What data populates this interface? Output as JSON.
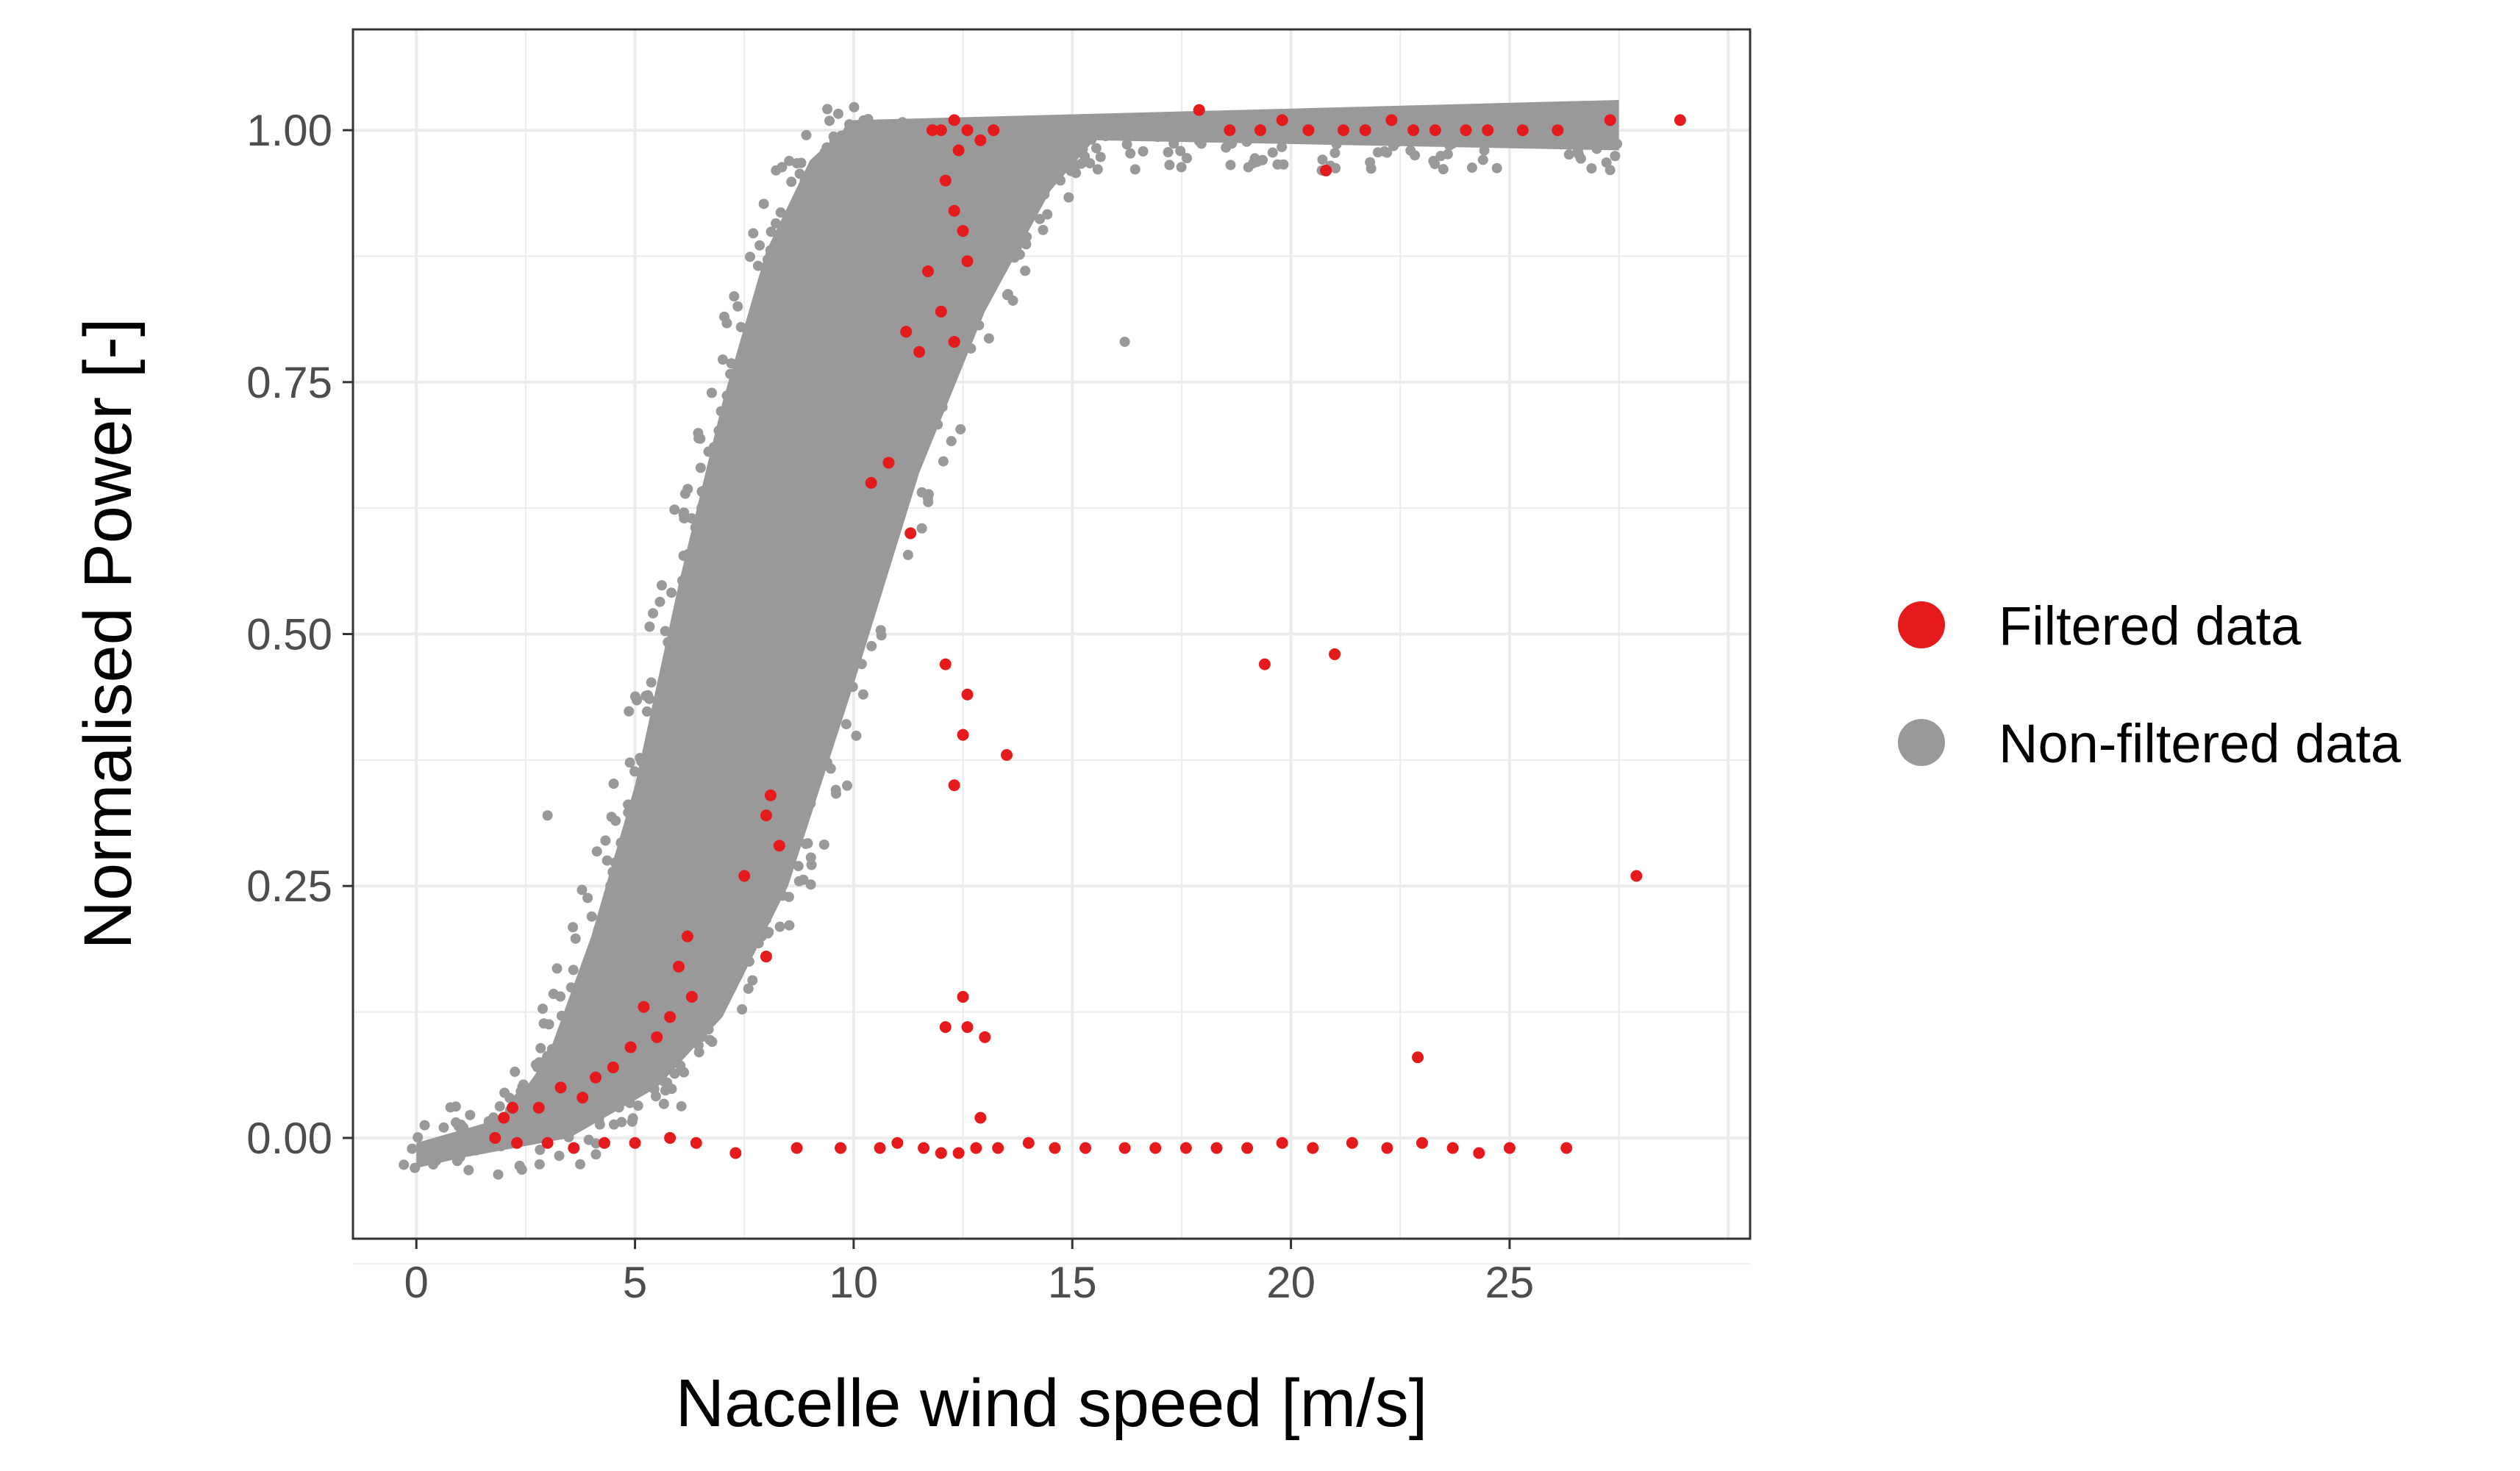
{
  "chart_data": {
    "type": "scatter",
    "xlabel": "Nacelle wind speed [m/s]",
    "ylabel": "Normalised Power [-]",
    "xlim": [
      -1.45,
      30.5
    ],
    "ylim": [
      -0.1,
      1.1
    ],
    "x_ticks": [
      0,
      5,
      10,
      15,
      20,
      25
    ],
    "x_tick_labels": [
      "0",
      "5",
      "10",
      "15",
      "20",
      "25"
    ],
    "y_ticks": [
      0,
      0.25,
      0.5,
      0.75,
      1.0
    ],
    "y_tick_labels": [
      "0.00",
      "0.25",
      "0.50",
      "0.75",
      "1.00"
    ],
    "grid": true,
    "legend_position": "right",
    "series": [
      {
        "name": "Non-filtered data",
        "color": "#999999",
        "description_of_extent": {
          "rated_band_x": [
            10.5,
            27.5
          ],
          "rated_band_y": [
            0.98,
            1.03
          ],
          "ramp_lower_edge": [
            [
              1.0,
              -0.02
            ],
            [
              3.5,
              0.0
            ],
            [
              5.5,
              0.05
            ],
            [
              7.0,
              0.12
            ],
            [
              8.5,
              0.25
            ],
            [
              10.0,
              0.45
            ],
            [
              11.5,
              0.66
            ],
            [
              13.0,
              0.82
            ],
            [
              14.5,
              0.94
            ],
            [
              15.5,
              0.99
            ]
          ],
          "ramp_upper_edge": [
            [
              0.0,
              -0.005
            ],
            [
              2.0,
              0.02
            ],
            [
              3.0,
              0.08
            ],
            [
              4.0,
              0.2
            ],
            [
              5.0,
              0.35
            ],
            [
              6.0,
              0.55
            ],
            [
              7.0,
              0.73
            ],
            [
              8.0,
              0.88
            ],
            [
              9.0,
              0.97
            ],
            [
              10.0,
              1.01
            ]
          ]
        },
        "outliers": [
          [
            16.2,
            0.79
          ],
          [
            3.0,
            0.32
          ],
          [
            26.1,
            1.02
          ]
        ]
      },
      {
        "name": "Filtered data",
        "color": "#e41a1c",
        "points": [
          [
            12.0,
            1.0
          ],
          [
            12.3,
            1.01
          ],
          [
            12.6,
            1.0
          ],
          [
            12.9,
            0.99
          ],
          [
            13.2,
            1.0
          ],
          [
            11.8,
            1.0
          ],
          [
            12.4,
            0.98
          ],
          [
            12.1,
            0.95
          ],
          [
            12.3,
            0.92
          ],
          [
            12.5,
            0.9
          ],
          [
            12.6,
            0.87
          ],
          [
            11.7,
            0.86
          ],
          [
            12.0,
            0.82
          ],
          [
            12.3,
            0.79
          ],
          [
            11.2,
            0.8
          ],
          [
            11.5,
            0.78
          ],
          [
            10.4,
            0.65
          ],
          [
            10.8,
            0.67
          ],
          [
            11.3,
            0.6
          ],
          [
            12.1,
            0.47
          ],
          [
            12.6,
            0.44
          ],
          [
            12.5,
            0.4
          ],
          [
            13.5,
            0.38
          ],
          [
            12.3,
            0.35
          ],
          [
            8.1,
            0.34
          ],
          [
            8.0,
            0.32
          ],
          [
            8.3,
            0.29
          ],
          [
            7.5,
            0.26
          ],
          [
            8.0,
            0.18
          ],
          [
            6.2,
            0.2
          ],
          [
            6.0,
            0.17
          ],
          [
            6.3,
            0.14
          ],
          [
            5.8,
            0.12
          ],
          [
            5.5,
            0.1
          ],
          [
            5.2,
            0.13
          ],
          [
            4.9,
            0.09
          ],
          [
            4.5,
            0.07
          ],
          [
            4.1,
            0.06
          ],
          [
            3.8,
            0.04
          ],
          [
            3.3,
            0.05
          ],
          [
            2.8,
            0.03
          ],
          [
            2.2,
            0.03
          ],
          [
            2.0,
            0.02
          ],
          [
            1.8,
            0.0
          ],
          [
            12.5,
            0.14
          ],
          [
            12.6,
            0.11
          ],
          [
            12.1,
            0.11
          ],
          [
            13.0,
            0.1
          ],
          [
            12.9,
            0.02
          ],
          [
            17.9,
            1.02
          ],
          [
            18.6,
            1.0
          ],
          [
            19.3,
            1.0
          ],
          [
            19.8,
            1.01
          ],
          [
            20.4,
            1.0
          ],
          [
            20.8,
            0.96
          ],
          [
            21.2,
            1.0
          ],
          [
            21.7,
            1.0
          ],
          [
            22.3,
            1.01
          ],
          [
            22.8,
            1.0
          ],
          [
            23.3,
            1.0
          ],
          [
            24.0,
            1.0
          ],
          [
            24.5,
            1.0
          ],
          [
            25.3,
            1.0
          ],
          [
            26.1,
            1.0
          ],
          [
            27.3,
            1.01
          ],
          [
            28.9,
            1.01
          ],
          [
            19.4,
            0.47
          ],
          [
            21.0,
            0.48
          ],
          [
            27.9,
            0.26
          ],
          [
            22.9,
            0.08
          ],
          [
            2.3,
            -0.005
          ],
          [
            3.0,
            -0.005
          ],
          [
            3.6,
            -0.01
          ],
          [
            4.3,
            -0.005
          ],
          [
            5.0,
            -0.005
          ],
          [
            5.8,
            0.0
          ],
          [
            6.4,
            -0.005
          ],
          [
            7.3,
            -0.015
          ],
          [
            8.7,
            -0.01
          ],
          [
            9.7,
            -0.01
          ],
          [
            10.6,
            -0.01
          ],
          [
            11.0,
            -0.005
          ],
          [
            11.6,
            -0.01
          ],
          [
            12.0,
            -0.015
          ],
          [
            12.4,
            -0.015
          ],
          [
            12.8,
            -0.01
          ],
          [
            13.3,
            -0.01
          ],
          [
            14.0,
            -0.005
          ],
          [
            14.6,
            -0.01
          ],
          [
            15.3,
            -0.01
          ],
          [
            16.2,
            -0.01
          ],
          [
            16.9,
            -0.01
          ],
          [
            17.6,
            -0.01
          ],
          [
            18.3,
            -0.01
          ],
          [
            19.0,
            -0.01
          ],
          [
            19.8,
            -0.005
          ],
          [
            20.5,
            -0.01
          ],
          [
            21.4,
            -0.005
          ],
          [
            22.2,
            -0.01
          ],
          [
            23.0,
            -0.005
          ],
          [
            23.7,
            -0.01
          ],
          [
            24.3,
            -0.015
          ],
          [
            25.0,
            -0.01
          ],
          [
            26.3,
            -0.01
          ]
        ]
      }
    ]
  },
  "legend": {
    "items": [
      {
        "label": "Filtered data",
        "color": "#e41a1c"
      },
      {
        "label": "Non-filtered data",
        "color": "#999999"
      }
    ]
  }
}
